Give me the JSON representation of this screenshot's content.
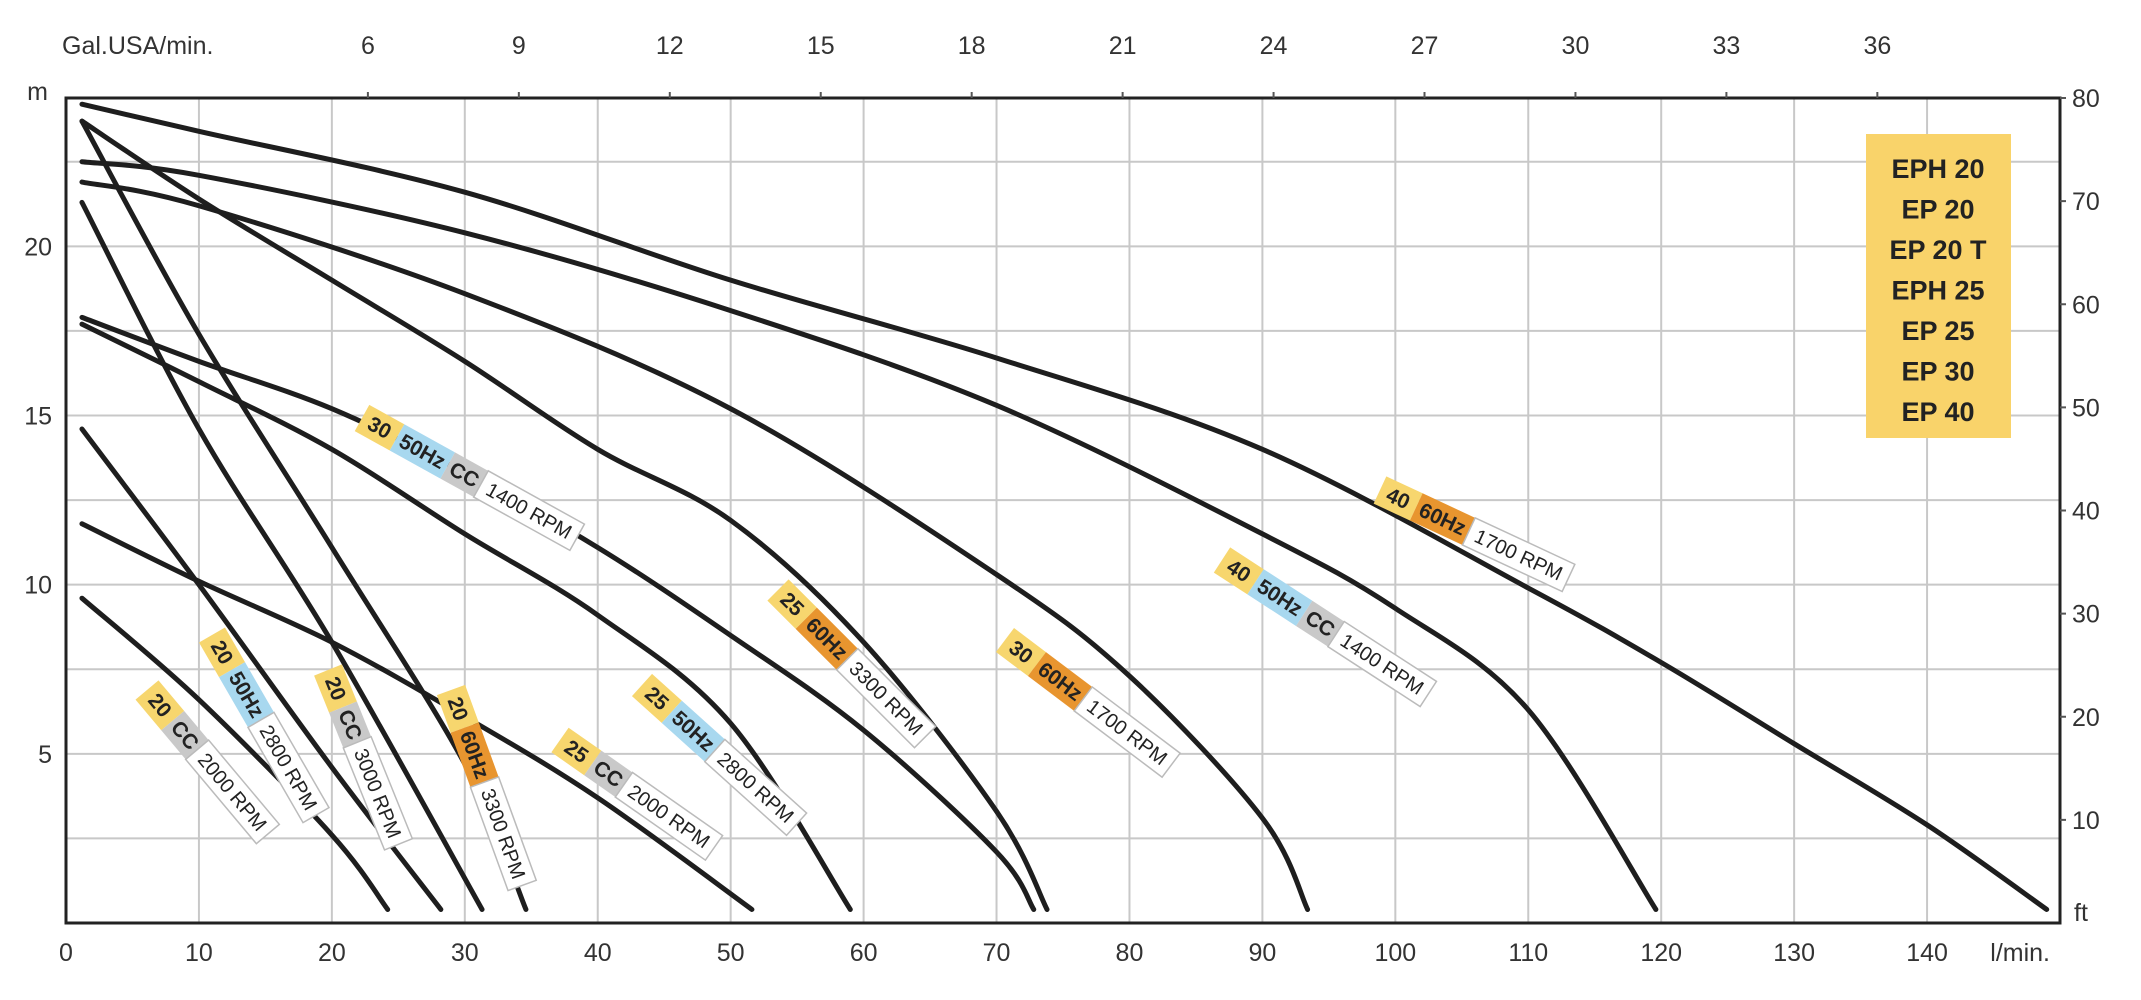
{
  "chart_data": {
    "type": "line",
    "xlabel": "l/min.",
    "x2label": "Gal.USA/min.",
    "ylabel": "m",
    "y2label": "ft",
    "xlim": [
      0,
      150
    ],
    "ylim": [
      0,
      24.384
    ],
    "x_ticks": [
      0,
      10,
      20,
      30,
      40,
      50,
      60,
      70,
      80,
      90,
      100,
      110,
      120,
      130,
      140
    ],
    "x2_ticks": [
      6,
      9,
      12,
      15,
      18,
      21,
      24,
      27,
      30,
      33,
      36
    ],
    "y_ticks": [
      5,
      10,
      15,
      20
    ],
    "y_grid_step": 2.5,
    "y2_ticks": [
      10,
      20,
      30,
      40,
      50,
      60,
      70,
      80
    ],
    "grid": true,
    "legend": {
      "placement": "top-right",
      "items": [
        "EPH 20",
        "EP 20",
        "EP 20 T",
        "EPH 25",
        "EP 25",
        "EP 30",
        "EP 40"
      ],
      "color": "#f9d36a"
    },
    "badge_colors": {
      "size": "#f7d66e",
      "50Hz": "#a8d8ef",
      "60Hz": "#e8952f",
      "CC": "#c9c9c9",
      "rpm": "#ffffff"
    },
    "series": [
      {
        "size": "40",
        "supply": "60Hz",
        "rpm": "1700 RPM",
        "points": [
          [
            1.2,
            24.2
          ],
          [
            10,
            23.4
          ],
          [
            30,
            21.6
          ],
          [
            50,
            19.0
          ],
          [
            70,
            16.7
          ],
          [
            90,
            14.0
          ],
          [
            110,
            9.9
          ],
          [
            120,
            7.7
          ],
          [
            130,
            5.3
          ],
          [
            140,
            2.9
          ],
          [
            149,
            0.4
          ]
        ]
      },
      {
        "size": "40",
        "supply": "50Hz",
        "extra": "CC",
        "rpm": "1400 RPM",
        "points": [
          [
            1.2,
            22.5
          ],
          [
            10,
            22.1
          ],
          [
            30,
            20.4
          ],
          [
            50,
            18.1
          ],
          [
            70,
            15.3
          ],
          [
            90,
            11.5
          ],
          [
            100,
            9.3
          ],
          [
            110,
            6.3
          ],
          [
            119.6,
            0.4
          ]
        ]
      },
      {
        "size": "30",
        "supply": "60Hz",
        "rpm": "1700 RPM",
        "points": [
          [
            1.2,
            21.9
          ],
          [
            10,
            21.2
          ],
          [
            30,
            18.6
          ],
          [
            50,
            15.2
          ],
          [
            70,
            10.3
          ],
          [
            80,
            7.3
          ],
          [
            90,
            3.1
          ],
          [
            93.4,
            0.4
          ]
        ]
      },
      {
        "size": "25",
        "supply": "60Hz",
        "rpm": "3300 RPM",
        "points": [
          [
            1.2,
            23.7
          ],
          [
            10,
            21.4
          ],
          [
            20,
            19.0
          ],
          [
            30,
            16.6
          ],
          [
            40,
            14.0
          ],
          [
            50,
            11.9
          ],
          [
            60,
            8.3
          ],
          [
            70,
            3.3
          ],
          [
            73.8,
            0.4
          ]
        ]
      },
      {
        "size": "30",
        "supply": "50Hz",
        "extra": "CC",
        "rpm": "1400 RPM",
        "points": [
          [
            1.2,
            17.9
          ],
          [
            10,
            16.6
          ],
          [
            20,
            15.2
          ],
          [
            30,
            13.3
          ],
          [
            40,
            11.1
          ],
          [
            50,
            8.5
          ],
          [
            60,
            5.7
          ],
          [
            70,
            2.1
          ],
          [
            72.8,
            0.4
          ]
        ]
      },
      {
        "size": "25",
        "supply": "50Hz",
        "rpm": "2800 RPM",
        "points": [
          [
            1.2,
            17.7
          ],
          [
            10,
            16.0
          ],
          [
            20,
            14.0
          ],
          [
            30,
            11.5
          ],
          [
            40,
            9.1
          ],
          [
            50,
            5.9
          ],
          [
            59,
            0.4
          ]
        ]
      },
      {
        "size": "25",
        "supply": "CC",
        "rpm": "2000 RPM",
        "points": [
          [
            1.2,
            11.8
          ],
          [
            10,
            10.1
          ],
          [
            20,
            8.3
          ],
          [
            30,
            6.1
          ],
          [
            40,
            3.7
          ],
          [
            51.6,
            0.4
          ]
        ]
      },
      {
        "size": "20",
        "supply": "60Hz",
        "rpm": "3300 RPM",
        "points": [
          [
            1.2,
            23.7
          ],
          [
            10,
            17.4
          ],
          [
            20,
            11.1
          ],
          [
            30,
            4.7
          ],
          [
            34.6,
            0.4
          ]
        ]
      },
      {
        "size": "20",
        "supply": "CC",
        "rpm": "3000 RPM",
        "points": [
          [
            1.2,
            21.3
          ],
          [
            10,
            14.6
          ],
          [
            20,
            8.3
          ],
          [
            31.3,
            0.4
          ]
        ]
      },
      {
        "size": "20",
        "supply": "50Hz",
        "rpm": "2800 RPM",
        "points": [
          [
            1.2,
            14.6
          ],
          [
            10,
            10.0
          ],
          [
            20,
            4.6
          ],
          [
            28.2,
            0.4
          ]
        ]
      },
      {
        "size": "20",
        "supply": "CC",
        "rpm": "2000 RPM",
        "points": [
          [
            1.2,
            9.6
          ],
          [
            10,
            6.6
          ],
          [
            20,
            2.6
          ],
          [
            24.2,
            0.4
          ]
        ]
      }
    ]
  }
}
